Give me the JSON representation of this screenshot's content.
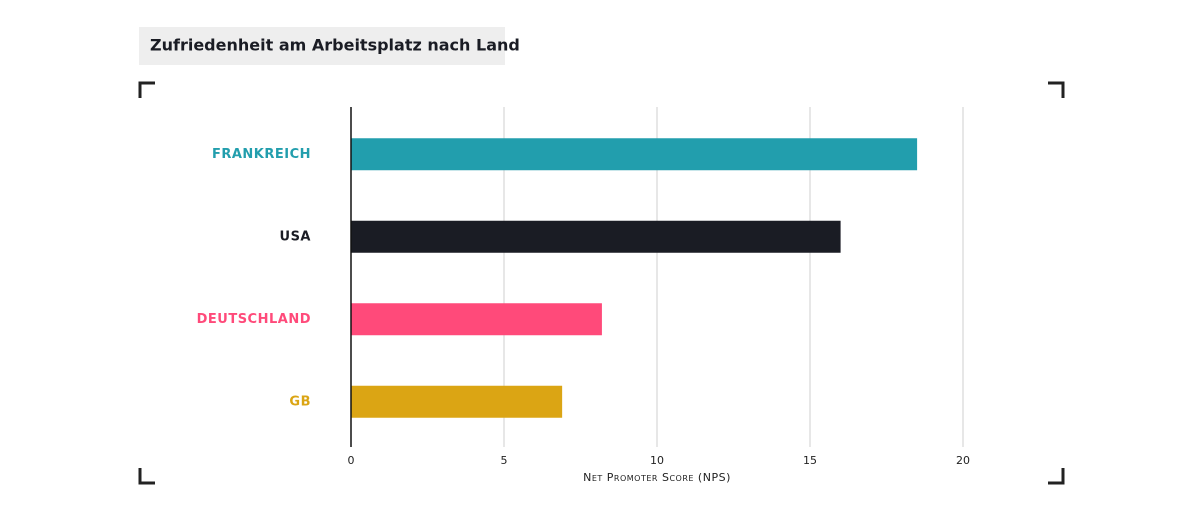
{
  "chart_data": {
    "type": "bar",
    "orientation": "horizontal",
    "title": "Zufriedenheit am Arbeitsplatz nach Land",
    "categories": [
      "FRANKREICH",
      "USA",
      "DEUTSCHLAND",
      "GB"
    ],
    "values": [
      18.5,
      16,
      8.2,
      6.9
    ],
    "colors": [
      "#229ead",
      "#1a1c24",
      "#ff4a7a",
      "#dba514"
    ],
    "xlabel": "Net Promoter Score (NPS)",
    "xlim": [
      0,
      20
    ],
    "xticks": [
      0,
      5,
      10,
      15,
      20
    ],
    "grid": true
  }
}
